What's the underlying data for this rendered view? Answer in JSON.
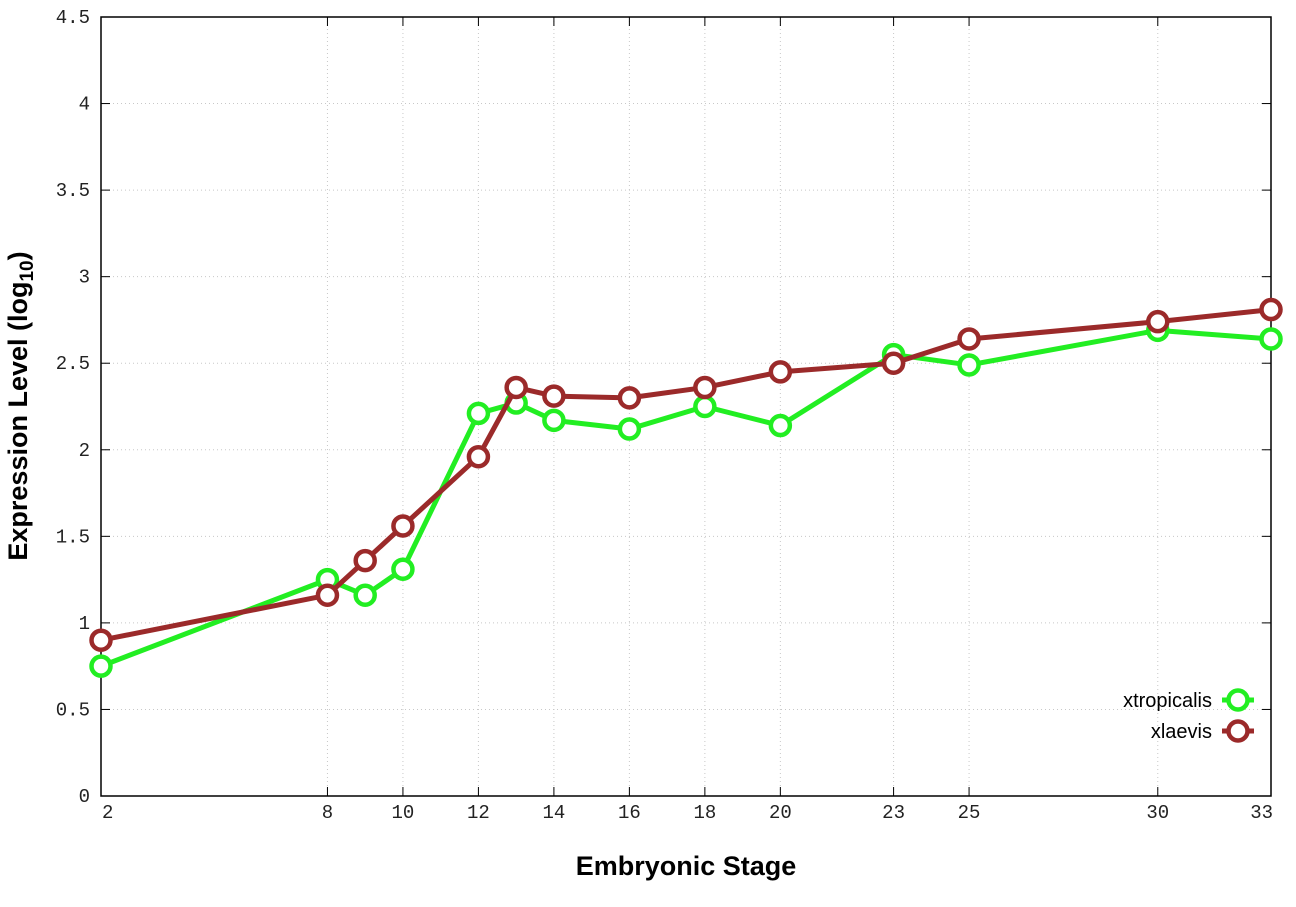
{
  "chart_data": {
    "type": "line",
    "title": "",
    "xlabel": "Embryonic Stage",
    "ylabel": "Expression Level (log10)",
    "ylabel_main": "Expression Level (log",
    "ylabel_sub": "10",
    "ylabel_close": ")",
    "xlim": [
      2,
      33
    ],
    "ylim": [
      0,
      4.5
    ],
    "x_ticks": [
      2,
      8,
      10,
      12,
      14,
      16,
      18,
      20,
      23,
      25,
      30,
      33
    ],
    "x_tick_labels": [
      "2",
      "8",
      "10",
      "12",
      "14",
      "16",
      "18",
      "20",
      "23",
      "25",
      "30",
      "33"
    ],
    "y_ticks": [
      0,
      0.5,
      1,
      1.5,
      2,
      2.5,
      3,
      3.5,
      4,
      4.5
    ],
    "y_tick_labels": [
      "0",
      "0.5",
      "1",
      "1.5",
      "2",
      "2.5",
      "3",
      "3.5",
      "4",
      "4.5"
    ],
    "grid": true,
    "legend_position": "bottom-right",
    "series": [
      {
        "name": "xtropicalis",
        "color": "#22ee22",
        "points": [
          [
            2,
            0.75
          ],
          [
            8,
            1.25
          ],
          [
            9,
            1.16
          ],
          [
            10,
            1.31
          ],
          [
            12,
            2.21
          ],
          [
            13,
            2.27
          ],
          [
            14,
            2.17
          ],
          [
            16,
            2.12
          ],
          [
            18,
            2.25
          ],
          [
            20,
            2.14
          ],
          [
            23,
            2.55
          ],
          [
            25,
            2.49
          ],
          [
            30,
            2.69
          ],
          [
            33,
            2.64
          ]
        ]
      },
      {
        "name": "xlaevis",
        "color": "#9b2a2a",
        "points": [
          [
            2,
            0.9
          ],
          [
            8,
            1.16
          ],
          [
            9,
            1.36
          ],
          [
            10,
            1.56
          ],
          [
            12,
            1.96
          ],
          [
            13,
            2.36
          ],
          [
            14,
            2.31
          ],
          [
            16,
            2.3
          ],
          [
            18,
            2.36
          ],
          [
            20,
            2.45
          ],
          [
            23,
            2.5
          ],
          [
            25,
            2.64
          ],
          [
            30,
            2.74
          ],
          [
            33,
            2.81
          ]
        ]
      }
    ]
  }
}
